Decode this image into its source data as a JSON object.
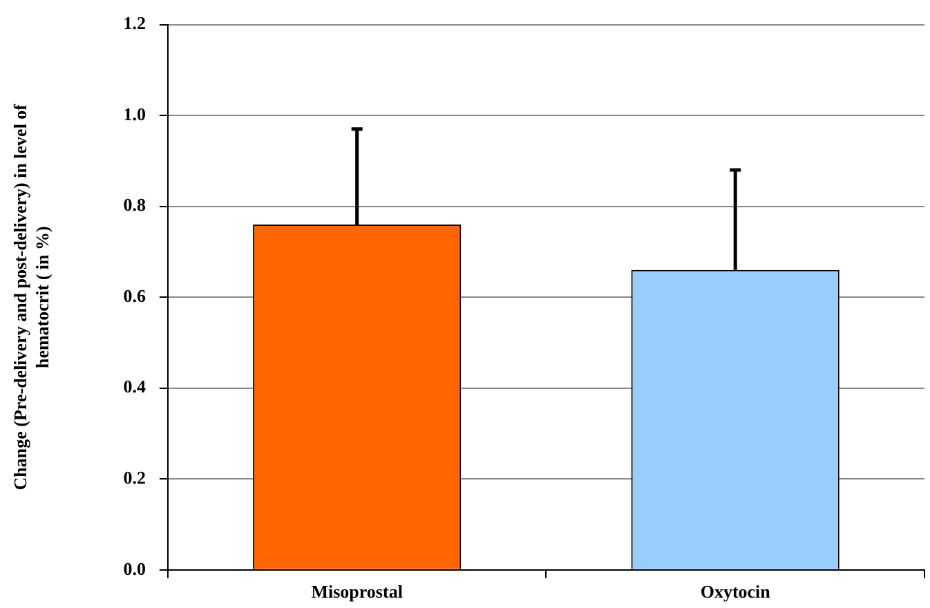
{
  "chart_data": {
    "type": "bar",
    "ylabel": "Change (Pre-delivery and post-delivery) in level of hematocrit ( in %)",
    "categories": [
      "Misoprostal",
      "Oxytocin"
    ],
    "values": [
      0.76,
      0.66
    ],
    "colors": [
      "#ff6600",
      "#99ccff"
    ],
    "errors": [
      [
        0.76,
        0.97
      ],
      [
        0.66,
        0.88
      ]
    ],
    "ylim": [
      0,
      1.2
    ],
    "yticks": [
      {
        "value": 0,
        "label": "0.0"
      },
      {
        "value": 0.2,
        "label": "0.2"
      },
      {
        "value": 0.4,
        "label": "0.4"
      },
      {
        "value": 0.6,
        "label": "0.6"
      },
      {
        "value": 0.8,
        "label": "0.8"
      },
      {
        "value": 1,
        "label": "1.0"
      },
      {
        "value": 1.2,
        "label": "1.2"
      }
    ],
    "grid": "y",
    "legend": false
  }
}
